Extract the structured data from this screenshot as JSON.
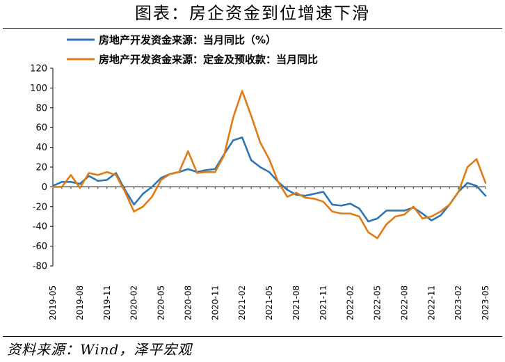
{
  "page": {
    "title": "图表：房企资金到位增速下滑",
    "source": "资料来源：Wind，泽平宏观"
  },
  "chart_data": {
    "type": "line",
    "title": "图表：房企资金到位增速下滑",
    "ylim": [
      -80,
      120
    ],
    "yticks": [
      -80,
      -60,
      -40,
      -20,
      0,
      20,
      40,
      60,
      80,
      100,
      120
    ],
    "x": [
      "2019-05",
      "2019-06",
      "2019-07",
      "2019-08",
      "2019-09",
      "2019-10",
      "2019-11",
      "2019-12",
      "2020-01",
      "2020-02",
      "2020-03",
      "2020-04",
      "2020-05",
      "2020-06",
      "2020-07",
      "2020-08",
      "2020-09",
      "2020-10",
      "2020-11",
      "2020-12",
      "2021-01",
      "2021-02",
      "2021-03",
      "2021-04",
      "2021-05",
      "2021-06",
      "2021-07",
      "2021-08",
      "2021-09",
      "2021-10",
      "2021-11",
      "2021-12",
      "2022-01",
      "2022-02",
      "2022-03",
      "2022-04",
      "2022-05",
      "2022-06",
      "2022-07",
      "2022-08",
      "2022-09",
      "2022-10",
      "2022-11",
      "2022-12",
      "2023-01",
      "2023-02",
      "2023-03",
      "2023-04",
      "2023-05"
    ],
    "xtick_labels": [
      "2019-05",
      "2019-08",
      "2019-11",
      "2020-02",
      "2020-05",
      "2020-08",
      "2020-11",
      "2021-02",
      "2021-05",
      "2021-08",
      "2021-11",
      "2022-02",
      "2022-05",
      "2022-08",
      "2022-11",
      "2023-02",
      "2023-05"
    ],
    "grid": false,
    "legend": "top-left",
    "series": [
      {
        "name": "房地产开发资金来源：当月同比（%）",
        "color": "#2e75b6",
        "values": [
          1,
          5,
          5,
          3,
          11,
          6,
          7,
          14,
          -3,
          -18,
          -7,
          0,
          9,
          13,
          15,
          18,
          15,
          17,
          18,
          33,
          47,
          50,
          27,
          20,
          15,
          5,
          -3,
          -8,
          -9,
          -7,
          -5,
          -18,
          -19,
          -17,
          -22,
          -35,
          -32,
          -24,
          -24,
          -24,
          -21,
          -27,
          -34,
          -29,
          -18,
          -5,
          4,
          1,
          -9
        ]
      },
      {
        "name": "房地产开发资金来源：定金及预收款：当月同比",
        "color": "#e07b14",
        "values": [
          0,
          0,
          12,
          -1,
          14,
          12,
          15,
          12,
          -5,
          -25,
          -20,
          -10,
          7,
          13,
          15,
          36,
          14,
          15,
          15,
          32,
          70,
          97,
          72,
          45,
          28,
          5,
          -10,
          -6,
          -11,
          -12,
          -15,
          -25,
          -27,
          -27,
          -30,
          -46,
          -52,
          -38,
          -30,
          -28,
          -20,
          -32,
          -30,
          -25,
          -18,
          -5,
          20,
          28,
          4
        ]
      }
    ]
  }
}
